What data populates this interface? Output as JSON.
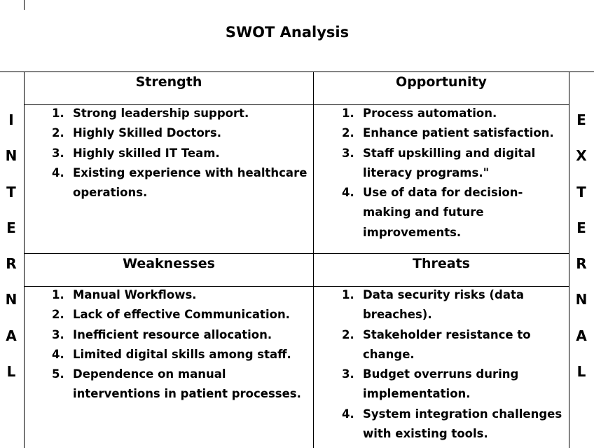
{
  "title": "SWOT Analysis",
  "side_labels": {
    "left": [
      "I",
      "N",
      "T",
      "E",
      "R",
      "N",
      "A",
      "L"
    ],
    "right": [
      "E",
      "X",
      "T",
      "E",
      "R",
      "N",
      "A",
      "L"
    ]
  },
  "strength": {
    "heading": "Strength",
    "items": [
      {
        "num": "1.",
        "text": "Strong leadership support."
      },
      {
        "num": "2.",
        "text": "Highly Skilled Doctors."
      },
      {
        "num": "3.",
        "text": "Highly skilled IT Team."
      },
      {
        "num": "4.",
        "text": "Existing experience with healthcare operations."
      }
    ]
  },
  "opportunity": {
    "heading": "Opportunity",
    "items": [
      {
        "num": "1.",
        "text": "Process automation."
      },
      {
        "num": "2.",
        "text": "Enhance patient satisfaction."
      },
      {
        "num": "3.",
        "text": "Staff upskilling and digital literacy programs.\""
      },
      {
        "num": "4.",
        "text": "Use of data for decision-making and future improvements."
      }
    ]
  },
  "weaknesses": {
    "heading": "Weaknesses",
    "items": [
      {
        "num": "1.",
        "text": "Manual Workflows."
      },
      {
        "num": "2.",
        "text": "Lack of effective Communication."
      },
      {
        "num": "3.",
        "text": "Inefficient resource allocation."
      },
      {
        "num": "4.",
        "text": "Limited digital skills among staff."
      },
      {
        "num": "5.",
        "text": "Dependence on manual interventions in patient processes."
      }
    ]
  },
  "threats": {
    "heading": "Threats",
    "items": [
      {
        "num": "1.",
        "text": "Data security risks (data breaches)."
      },
      {
        "num": "2.",
        "text": "Stakeholder resistance to change."
      },
      {
        "num": "3.",
        "text": "Budget overruns during implementation."
      },
      {
        "num": "4.",
        "text": "System integration challenges with existing tools."
      }
    ]
  }
}
